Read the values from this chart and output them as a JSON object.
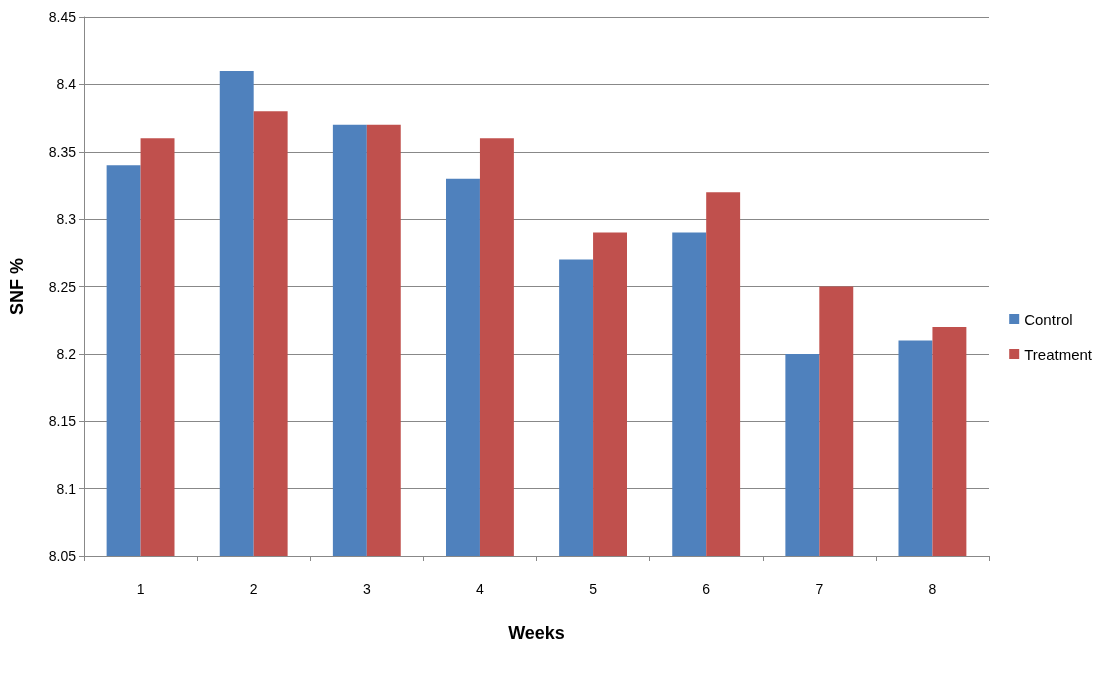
{
  "chart_data": {
    "type": "bar",
    "xlabel": "Weeks",
    "ylabel": "SNF %",
    "categories": [
      "1",
      "2",
      "3",
      "4",
      "5",
      "6",
      "7",
      "8"
    ],
    "series": [
      {
        "name": "Control",
        "color": "#4f81bd",
        "values": [
          8.34,
          8.41,
          8.37,
          8.33,
          8.27,
          8.29,
          8.2,
          8.21
        ]
      },
      {
        "name": "Treatment",
        "color": "#c0504d",
        "values": [
          8.36,
          8.38,
          8.37,
          8.36,
          8.29,
          8.32,
          8.25,
          8.22
        ]
      }
    ],
    "ylim": [
      8.05,
      8.45
    ],
    "yticks": [
      8.05,
      8.1,
      8.15,
      8.2,
      8.25,
      8.3,
      8.35,
      8.4,
      8.45
    ],
    "grid": "y",
    "legend": "right"
  }
}
